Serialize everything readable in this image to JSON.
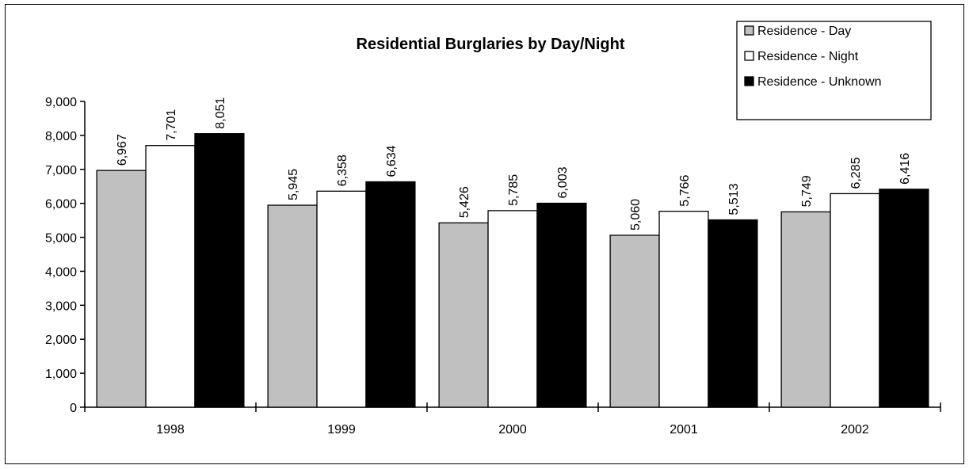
{
  "chart_data": {
    "type": "bar",
    "title": "Residential Burglaries by Day/Night",
    "xlabel": "",
    "ylabel": "",
    "categories": [
      "1998",
      "1999",
      "2000",
      "2001",
      "2002"
    ],
    "series": [
      {
        "name": "Residence - Day",
        "color": "#c0c0c0",
        "values": [
          6967,
          5945,
          5426,
          5060,
          5749
        ],
        "labels": [
          "6,967",
          "5,945",
          "5,426",
          "5,060",
          "5,749"
        ]
      },
      {
        "name": "Residence - Night",
        "color": "#ffffff",
        "values": [
          7701,
          6358,
          5785,
          5766,
          6285
        ],
        "labels": [
          "7,701",
          "6,358",
          "5,785",
          "5,766",
          "6,285"
        ]
      },
      {
        "name": "Residence - Unknown",
        "color": "#000000",
        "values": [
          8051,
          6634,
          6003,
          5513,
          6416
        ],
        "labels": [
          "8,051",
          "6,634",
          "6,003",
          "5,513",
          "6,416"
        ]
      }
    ],
    "ylim": [
      0,
      9000
    ],
    "yticks": [
      0,
      1000,
      2000,
      3000,
      4000,
      5000,
      6000,
      7000,
      8000,
      9000
    ],
    "ytick_labels": [
      "0",
      "1,000",
      "2,000",
      "3,000",
      "4,000",
      "5,000",
      "6,000",
      "7,000",
      "8,000",
      "9,000"
    ],
    "grid": false,
    "legend_position": "top-right",
    "data_labels_rotated": true
  }
}
